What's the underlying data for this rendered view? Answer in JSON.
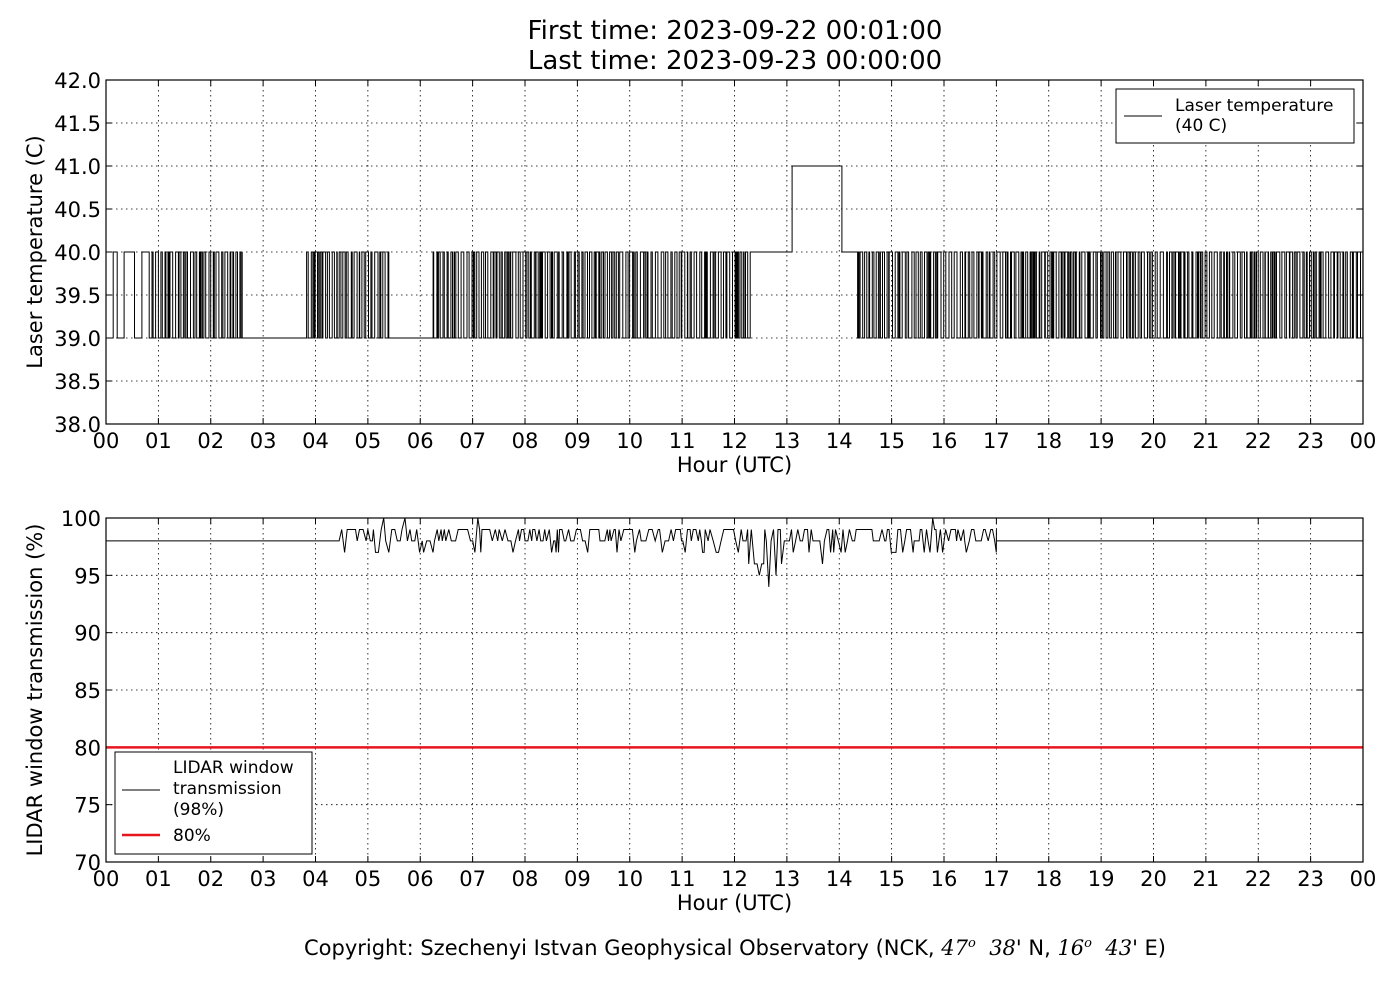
{
  "title": {
    "line1": "First time: 2023-09-22 00:01:00",
    "line2": "Last time: 2023-09-23 00:00:00"
  },
  "copyright": {
    "prefix": "Copyright: Szechenyi Istvan Geophysical Observatory (NCK, ",
    "lat_deg": "47",
    "lat_min": "38",
    "lat_suffix": "' N, ",
    "lon_deg": "16",
    "lon_min": "43",
    "lon_suffix": "' E)",
    "degree_sym": "o"
  },
  "chart_data": [
    {
      "type": "line",
      "xlabel": "Hour (UTC)",
      "ylabel": "Laser temperature (C)",
      "xlim": [
        0,
        24
      ],
      "ylim": [
        38.0,
        42.0
      ],
      "xticks": [
        "00",
        "01",
        "02",
        "03",
        "04",
        "05",
        "06",
        "07",
        "08",
        "09",
        "10",
        "11",
        "12",
        "13",
        "14",
        "15",
        "16",
        "17",
        "18",
        "19",
        "20",
        "21",
        "22",
        "23",
        "00"
      ],
      "yticks": [
        "38.0",
        "38.5",
        "39.0",
        "39.5",
        "40.0",
        "40.5",
        "41.0",
        "41.5",
        "42.0"
      ],
      "grid": true,
      "legend_position": "top-right",
      "series": [
        {
          "name": "Laser temperature\n(40 C)",
          "color": "#000000",
          "levels": [
            39.0,
            40.0,
            41.0
          ],
          "segments": [
            {
              "start": 0.0,
              "end": 0.9,
              "low": 39.0,
              "high": 40.0,
              "pattern": "sparse"
            },
            {
              "start": 0.9,
              "end": 2.6,
              "low": 39.0,
              "high": 40.0,
              "pattern": "dense"
            },
            {
              "start": 2.6,
              "end": 3.8,
              "low": 39.0,
              "high": 40.0,
              "pattern": "flat-low"
            },
            {
              "start": 3.8,
              "end": 5.4,
              "low": 39.0,
              "high": 40.0,
              "pattern": "dense"
            },
            {
              "start": 5.4,
              "end": 6.2,
              "low": 39.0,
              "high": 40.0,
              "pattern": "flat-low"
            },
            {
              "start": 6.2,
              "end": 12.3,
              "low": 39.0,
              "high": 40.0,
              "pattern": "dense"
            },
            {
              "start": 12.3,
              "end": 13.1,
              "low": 40.0,
              "high": 40.0,
              "pattern": "flat-high"
            },
            {
              "start": 13.1,
              "end": 14.05,
              "low": 41.0,
              "high": 41.0,
              "pattern": "flat-peak"
            },
            {
              "start": 14.05,
              "end": 14.35,
              "low": 40.0,
              "high": 40.0,
              "pattern": "flat-high"
            },
            {
              "start": 14.35,
              "end": 24.0,
              "low": 39.0,
              "high": 40.0,
              "pattern": "dense"
            }
          ]
        }
      ]
    },
    {
      "type": "line",
      "xlabel": "Hour (UTC)",
      "ylabel": "LIDAR window transmission (%)",
      "xlim": [
        0,
        24
      ],
      "ylim": [
        70,
        100
      ],
      "xticks": [
        "00",
        "01",
        "02",
        "03",
        "04",
        "05",
        "06",
        "07",
        "08",
        "09",
        "10",
        "11",
        "12",
        "13",
        "14",
        "15",
        "16",
        "17",
        "18",
        "19",
        "20",
        "21",
        "22",
        "23",
        "00"
      ],
      "yticks": [
        "70",
        "75",
        "80",
        "85",
        "90",
        "95",
        "100"
      ],
      "grid": true,
      "legend_position": "bottom-left",
      "series": [
        {
          "name": "LIDAR window\ntransmission\n(98%)",
          "color": "#000000",
          "baseline": 98,
          "noisy_range": [
            4.45,
            17.0
          ],
          "noise_levels": [
            94,
            95,
            96,
            97,
            98,
            99,
            100
          ],
          "dips": [
            {
              "x": 5.15,
              "y": 97
            },
            {
              "x": 6.05,
              "y": 97
            },
            {
              "x": 7.15,
              "y": 97
            },
            {
              "x": 12.25,
              "y": 96
            },
            {
              "x": 12.45,
              "y": 95
            },
            {
              "x": 12.65,
              "y": 94
            },
            {
              "x": 12.75,
              "y": 95
            },
            {
              "x": 13.65,
              "y": 96
            }
          ],
          "peaks": [
            {
              "x": 5.3,
              "y": 100
            },
            {
              "x": 5.7,
              "y": 100
            },
            {
              "x": 7.05,
              "y": 100
            },
            {
              "x": 15.75,
              "y": 100
            }
          ]
        },
        {
          "name": "80%",
          "color": "#e8141e",
          "value": 80
        }
      ]
    }
  ]
}
